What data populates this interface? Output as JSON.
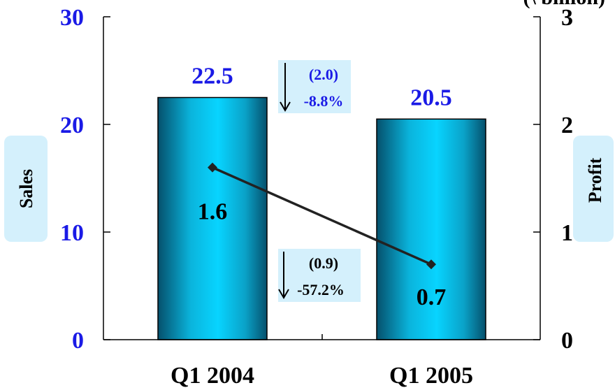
{
  "chart_data": {
    "type": "bar",
    "unit_label": "(\\ billion)",
    "categories": [
      "Q1 2004",
      "Q1 2005"
    ],
    "series": [
      {
        "name": "Sales",
        "values": [
          22.5,
          20.5
        ],
        "axis": "left",
        "type": "bar"
      },
      {
        "name": "Profit",
        "values": [
          1.6,
          0.7
        ],
        "axis": "right",
        "type": "line"
      }
    ],
    "ylabel": "Sales",
    "y2label": "Profit",
    "ylim": [
      0,
      30
    ],
    "y2lim": [
      0,
      3
    ],
    "yticks": [
      "0",
      "10",
      "20",
      "30"
    ],
    "y2ticks": [
      "0",
      "1",
      "2",
      "3"
    ],
    "bar_labels": [
      "22.5",
      "20.5"
    ],
    "point_labels": [
      "1.6",
      "0.7"
    ],
    "annotations": {
      "sales_change": {
        "amount": "(2.0)",
        "percent": "-8.8%"
      },
      "profit_change": {
        "amount": "(0.9)",
        "percent": "-57.2%"
      }
    },
    "colors": {
      "bar_dark": "#05506c",
      "bar_light": "#08d4ff",
      "line": "#222222",
      "label_blue": "#1a1ae6",
      "callout_bg": "#d4f0fc"
    },
    "grid": false
  }
}
